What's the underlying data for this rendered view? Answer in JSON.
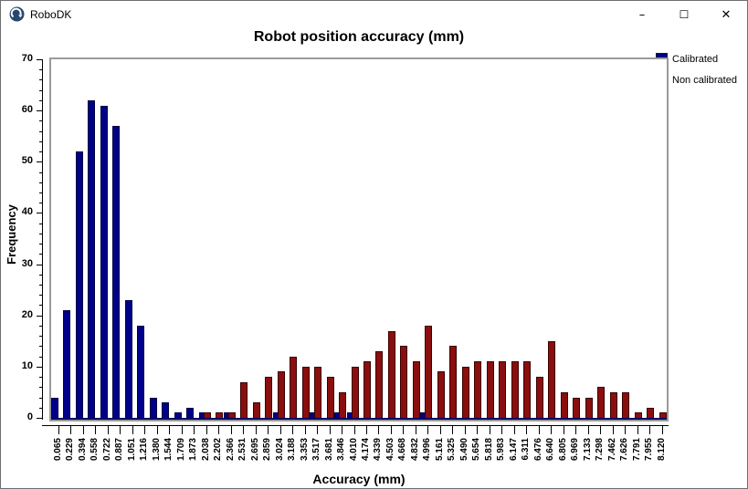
{
  "titlebar": {
    "title": "RoboDK",
    "minimize": "–",
    "maximize": "☐",
    "close": "✕"
  },
  "colors": {
    "calibrated": "#00008B",
    "calibrated_border": "#000041",
    "non_calibrated": "#8B0E0E",
    "non_calibrated_border": "#380000",
    "baseline": "#000063",
    "plot_border": "#9A9A9A",
    "axis": "#000000",
    "logo": "#27476E"
  },
  "chart_data": {
    "type": "bar",
    "title": "Robot position accuracy (mm)",
    "xlabel": "Accuracy (mm)",
    "ylabel": "Frequency",
    "ylim": [
      0,
      70
    ],
    "y_major_ticks": [
      0,
      10,
      20,
      30,
      40,
      50,
      60,
      70
    ],
    "y_minor_step": 2,
    "grid": "off",
    "legend_position": "top-right",
    "categories": [
      "0.065",
      "0.229",
      "0.394",
      "0.558",
      "0.722",
      "0.887",
      "1.051",
      "1.216",
      "1.380",
      "1.544",
      "1.709",
      "1.873",
      "2.038",
      "2.202",
      "2.366",
      "2.531",
      "2.695",
      "2.859",
      "3.024",
      "3.188",
      "3.353",
      "3.517",
      "3.681",
      "3.846",
      "4.010",
      "4.174",
      "4.339",
      "4.503",
      "4.668",
      "4.832",
      "4.996",
      "5.161",
      "5.325",
      "5.490",
      "5.654",
      "5.818",
      "5.983",
      "6.147",
      "6.311",
      "6.476",
      "6.640",
      "6.805",
      "6.969",
      "7.133",
      "7.298",
      "7.462",
      "7.626",
      "7.791",
      "7.955",
      "8.120"
    ],
    "series": [
      {
        "name": "Calibrated",
        "color": "#00008B",
        "values": [
          4,
          21,
          52,
          62,
          61,
          57,
          23,
          18,
          4,
          3,
          1,
          2,
          1,
          0,
          1,
          0,
          0,
          0,
          1,
          0,
          0,
          1,
          0,
          1,
          1,
          0,
          0,
          0,
          0,
          0,
          1,
          0,
          0,
          0,
          0,
          0,
          0,
          0,
          0,
          0,
          0,
          0,
          0,
          0,
          0,
          0,
          0,
          0,
          0,
          0
        ]
      },
      {
        "name": "Non calibrated",
        "color": "#8B0E0E",
        "values": [
          0,
          0,
          0,
          0,
          0,
          0,
          0,
          0,
          0,
          0,
          0,
          0,
          1,
          1,
          1,
          7,
          3,
          8,
          9,
          12,
          10,
          10,
          8,
          5,
          10,
          11,
          13,
          17,
          14,
          11,
          18,
          9,
          14,
          10,
          11,
          11,
          11,
          11,
          11,
          8,
          15,
          5,
          4,
          4,
          6,
          5,
          5,
          1,
          2,
          1
        ]
      }
    ]
  }
}
